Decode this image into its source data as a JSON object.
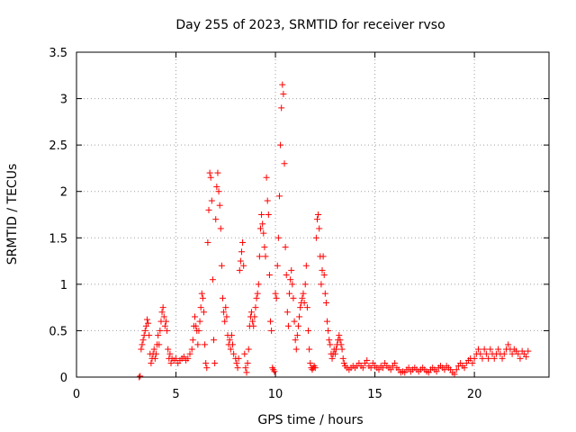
{
  "chart_data": {
    "type": "scatter",
    "title": "Day 255 of 2023, SRMTID for receiver rvso",
    "xlabel": "GPS time / hours",
    "ylabel": "SRMTID / TECUs",
    "xlim": [
      0,
      23.75
    ],
    "ylim": [
      0,
      3.5
    ],
    "xticks": [
      0,
      5,
      10,
      15,
      20
    ],
    "yticks": [
      0,
      0.5,
      1,
      1.5,
      2,
      2.5,
      3,
      3.5
    ],
    "xtick_labels": [
      "0",
      "5",
      "10",
      "15",
      "20"
    ],
    "ytick_labels": [
      "0",
      "0.5",
      "1",
      "1.5",
      "2",
      "2.5",
      "3",
      "3.5"
    ],
    "grid": true,
    "marker": "+",
    "color": "#ff0000",
    "series": [
      {
        "name": "SRMTID",
        "points": [
          [
            3.15,
            0.0
          ],
          [
            3.2,
            0.01
          ],
          [
            3.25,
            0.3
          ],
          [
            3.3,
            0.35
          ],
          [
            3.35,
            0.4
          ],
          [
            3.4,
            0.45
          ],
          [
            3.45,
            0.5
          ],
          [
            3.5,
            0.55
          ],
          [
            3.55,
            0.62
          ],
          [
            3.6,
            0.58
          ],
          [
            3.65,
            0.45
          ],
          [
            3.7,
            0.25
          ],
          [
            3.75,
            0.15
          ],
          [
            3.8,
            0.2
          ],
          [
            3.85,
            0.25
          ],
          [
            3.9,
            0.3
          ],
          [
            3.95,
            0.2
          ],
          [
            4.0,
            0.25
          ],
          [
            4.05,
            0.35
          ],
          [
            4.1,
            0.45
          ],
          [
            4.15,
            0.35
          ],
          [
            4.2,
            0.5
          ],
          [
            4.25,
            0.6
          ],
          [
            4.3,
            0.7
          ],
          [
            4.35,
            0.75
          ],
          [
            4.4,
            0.65
          ],
          [
            4.45,
            0.55
          ],
          [
            4.5,
            0.6
          ],
          [
            4.55,
            0.5
          ],
          [
            4.6,
            0.3
          ],
          [
            4.65,
            0.2
          ],
          [
            4.7,
            0.25
          ],
          [
            4.75,
            0.15
          ],
          [
            4.8,
            0.2
          ],
          [
            4.9,
            0.18
          ],
          [
            5.0,
            0.2
          ],
          [
            5.1,
            0.15
          ],
          [
            5.2,
            0.18
          ],
          [
            5.3,
            0.2
          ],
          [
            5.4,
            0.22
          ],
          [
            5.5,
            0.18
          ],
          [
            5.6,
            0.2
          ],
          [
            5.7,
            0.25
          ],
          [
            5.8,
            0.3
          ],
          [
            5.85,
            0.4
          ],
          [
            5.9,
            0.55
          ],
          [
            5.95,
            0.65
          ],
          [
            6.0,
            0.55
          ],
          [
            6.05,
            0.5
          ],
          [
            6.1,
            0.35
          ],
          [
            6.15,
            0.5
          ],
          [
            6.2,
            0.6
          ],
          [
            6.25,
            0.75
          ],
          [
            6.3,
            0.9
          ],
          [
            6.35,
            0.85
          ],
          [
            6.4,
            0.7
          ],
          [
            6.45,
            0.35
          ],
          [
            6.5,
            0.15
          ],
          [
            6.55,
            0.1
          ],
          [
            6.6,
            1.45
          ],
          [
            6.65,
            1.8
          ],
          [
            6.7,
            2.2
          ],
          [
            6.75,
            2.15
          ],
          [
            6.8,
            1.9
          ],
          [
            6.85,
            1.05
          ],
          [
            6.9,
            0.4
          ],
          [
            6.95,
            0.15
          ],
          [
            7.0,
            1.7
          ],
          [
            7.05,
            2.05
          ],
          [
            7.1,
            2.2
          ],
          [
            7.15,
            2.0
          ],
          [
            7.2,
            1.85
          ],
          [
            7.25,
            1.6
          ],
          [
            7.3,
            1.2
          ],
          [
            7.35,
            0.85
          ],
          [
            7.4,
            0.7
          ],
          [
            7.45,
            0.6
          ],
          [
            7.5,
            0.75
          ],
          [
            7.55,
            0.65
          ],
          [
            7.6,
            0.45
          ],
          [
            7.65,
            0.35
          ],
          [
            7.7,
            0.4
          ],
          [
            7.75,
            0.3
          ],
          [
            7.8,
            0.45
          ],
          [
            7.85,
            0.35
          ],
          [
            7.9,
            0.25
          ],
          [
            8.0,
            0.2
          ],
          [
            8.05,
            0.15
          ],
          [
            8.1,
            0.1
          ],
          [
            8.15,
            0.2
          ],
          [
            8.2,
            1.15
          ],
          [
            8.25,
            1.25
          ],
          [
            8.3,
            1.35
          ],
          [
            8.35,
            1.45
          ],
          [
            8.4,
            1.2
          ],
          [
            8.45,
            0.25
          ],
          [
            8.5,
            0.1
          ],
          [
            8.55,
            0.05
          ],
          [
            8.6,
            0.15
          ],
          [
            8.65,
            0.3
          ],
          [
            8.7,
            0.55
          ],
          [
            8.75,
            0.65
          ],
          [
            8.8,
            0.7
          ],
          [
            8.85,
            0.6
          ],
          [
            8.9,
            0.55
          ],
          [
            8.95,
            0.65
          ],
          [
            9.0,
            0.75
          ],
          [
            9.05,
            0.85
          ],
          [
            9.1,
            0.9
          ],
          [
            9.15,
            1.0
          ],
          [
            9.2,
            1.3
          ],
          [
            9.25,
            1.6
          ],
          [
            9.3,
            1.75
          ],
          [
            9.35,
            1.65
          ],
          [
            9.4,
            1.55
          ],
          [
            9.45,
            1.4
          ],
          [
            9.5,
            1.3
          ],
          [
            9.55,
            2.15
          ],
          [
            9.6,
            1.9
          ],
          [
            9.65,
            1.75
          ],
          [
            9.7,
            1.1
          ],
          [
            9.75,
            0.6
          ],
          [
            9.8,
            0.5
          ],
          [
            9.85,
            0.1
          ],
          [
            9.9,
            0.08
          ],
          [
            9.95,
            0.06
          ],
          [
            10.0,
            0.9
          ],
          [
            10.05,
            0.85
          ],
          [
            10.1,
            1.2
          ],
          [
            10.15,
            1.5
          ],
          [
            10.2,
            1.95
          ],
          [
            10.25,
            2.5
          ],
          [
            10.3,
            2.9
          ],
          [
            10.35,
            3.15
          ],
          [
            10.4,
            3.05
          ],
          [
            10.45,
            2.3
          ],
          [
            10.5,
            1.4
          ],
          [
            10.55,
            1.1
          ],
          [
            10.6,
            0.7
          ],
          [
            10.65,
            0.55
          ],
          [
            10.7,
            0.9
          ],
          [
            10.75,
            1.05
          ],
          [
            10.8,
            1.15
          ],
          [
            10.85,
            1.0
          ],
          [
            10.9,
            0.85
          ],
          [
            10.95,
            0.6
          ],
          [
            11.0,
            0.4
          ],
          [
            11.05,
            0.3
          ],
          [
            11.1,
            0.45
          ],
          [
            11.15,
            0.55
          ],
          [
            11.2,
            0.65
          ],
          [
            11.25,
            0.75
          ],
          [
            11.3,
            0.8
          ],
          [
            11.35,
            0.85
          ],
          [
            11.4,
            0.9
          ],
          [
            11.45,
            0.8
          ],
          [
            11.5,
            1.0
          ],
          [
            11.55,
            1.2
          ],
          [
            11.6,
            0.75
          ],
          [
            11.65,
            0.5
          ],
          [
            11.7,
            0.3
          ],
          [
            11.75,
            0.15
          ],
          [
            11.8,
            0.1
          ],
          [
            11.85,
            0.08
          ],
          [
            11.9,
            0.1
          ],
          [
            11.95,
            0.12
          ],
          [
            12.0,
            0.1
          ],
          [
            12.05,
            1.5
          ],
          [
            12.1,
            1.7
          ],
          [
            12.15,
            1.75
          ],
          [
            12.2,
            1.6
          ],
          [
            12.25,
            1.3
          ],
          [
            12.3,
            1.0
          ],
          [
            12.35,
            1.15
          ],
          [
            12.4,
            1.3
          ],
          [
            12.45,
            1.1
          ],
          [
            12.5,
            0.9
          ],
          [
            12.55,
            0.8
          ],
          [
            12.6,
            0.6
          ],
          [
            12.65,
            0.5
          ],
          [
            12.7,
            0.4
          ],
          [
            12.75,
            0.35
          ],
          [
            12.8,
            0.25
          ],
          [
            12.85,
            0.2
          ],
          [
            12.9,
            0.25
          ],
          [
            12.95,
            0.3
          ],
          [
            13.0,
            0.25
          ],
          [
            13.05,
            0.3
          ],
          [
            13.1,
            0.35
          ],
          [
            13.15,
            0.4
          ],
          [
            13.2,
            0.45
          ],
          [
            13.25,
            0.4
          ],
          [
            13.3,
            0.35
          ],
          [
            13.35,
            0.3
          ],
          [
            13.4,
            0.2
          ],
          [
            13.45,
            0.15
          ],
          [
            13.5,
            0.12
          ],
          [
            13.6,
            0.1
          ],
          [
            13.7,
            0.08
          ],
          [
            13.8,
            0.1
          ],
          [
            13.9,
            0.12
          ],
          [
            14.0,
            0.1
          ],
          [
            14.1,
            0.12
          ],
          [
            14.2,
            0.15
          ],
          [
            14.3,
            0.12
          ],
          [
            14.4,
            0.1
          ],
          [
            14.5,
            0.15
          ],
          [
            14.6,
            0.18
          ],
          [
            14.7,
            0.12
          ],
          [
            14.8,
            0.1
          ],
          [
            14.9,
            0.15
          ],
          [
            15.0,
            0.12
          ],
          [
            15.1,
            0.1
          ],
          [
            15.2,
            0.08
          ],
          [
            15.3,
            0.12
          ],
          [
            15.4,
            0.1
          ],
          [
            15.5,
            0.15
          ],
          [
            15.6,
            0.12
          ],
          [
            15.7,
            0.1
          ],
          [
            15.8,
            0.08
          ],
          [
            15.9,
            0.12
          ],
          [
            16.0,
            0.15
          ],
          [
            16.1,
            0.1
          ],
          [
            16.2,
            0.08
          ],
          [
            16.3,
            0.05
          ],
          [
            16.4,
            0.06
          ],
          [
            16.5,
            0.05
          ],
          [
            16.6,
            0.08
          ],
          [
            16.7,
            0.1
          ],
          [
            16.8,
            0.06
          ],
          [
            16.9,
            0.08
          ],
          [
            17.0,
            0.1
          ],
          [
            17.1,
            0.08
          ],
          [
            17.2,
            0.06
          ],
          [
            17.3,
            0.08
          ],
          [
            17.4,
            0.1
          ],
          [
            17.5,
            0.08
          ],
          [
            17.6,
            0.06
          ],
          [
            17.7,
            0.05
          ],
          [
            17.8,
            0.08
          ],
          [
            17.9,
            0.1
          ],
          [
            18.0,
            0.08
          ],
          [
            18.1,
            0.06
          ],
          [
            18.2,
            0.1
          ],
          [
            18.3,
            0.12
          ],
          [
            18.4,
            0.1
          ],
          [
            18.5,
            0.08
          ],
          [
            18.6,
            0.12
          ],
          [
            18.7,
            0.1
          ],
          [
            18.8,
            0.08
          ],
          [
            18.9,
            0.05
          ],
          [
            19.0,
            0.03
          ],
          [
            19.1,
            0.08
          ],
          [
            19.2,
            0.12
          ],
          [
            19.3,
            0.15
          ],
          [
            19.4,
            0.12
          ],
          [
            19.5,
            0.1
          ],
          [
            19.6,
            0.15
          ],
          [
            19.7,
            0.18
          ],
          [
            19.8,
            0.2
          ],
          [
            19.9,
            0.15
          ],
          [
            20.0,
            0.2
          ],
          [
            20.1,
            0.25
          ],
          [
            20.2,
            0.3
          ],
          [
            20.3,
            0.25
          ],
          [
            20.4,
            0.2
          ],
          [
            20.5,
            0.3
          ],
          [
            20.6,
            0.25
          ],
          [
            20.7,
            0.2
          ],
          [
            20.8,
            0.3
          ],
          [
            20.9,
            0.25
          ],
          [
            21.0,
            0.2
          ],
          [
            21.1,
            0.25
          ],
          [
            21.2,
            0.3
          ],
          [
            21.3,
            0.25
          ],
          [
            21.4,
            0.2
          ],
          [
            21.5,
            0.25
          ],
          [
            21.6,
            0.3
          ],
          [
            21.7,
            0.35
          ],
          [
            21.8,
            0.3
          ],
          [
            21.9,
            0.25
          ],
          [
            22.0,
            0.3
          ],
          [
            22.1,
            0.28
          ],
          [
            22.2,
            0.25
          ],
          [
            22.3,
            0.2
          ],
          [
            22.4,
            0.28
          ],
          [
            22.5,
            0.25
          ],
          [
            22.6,
            0.22
          ],
          [
            22.7,
            0.28
          ]
        ]
      }
    ]
  }
}
